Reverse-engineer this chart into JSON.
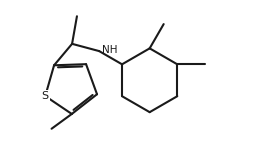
{
  "line_color": "#1a1a1a",
  "bg_color": "#ffffff",
  "line_width": 1.5,
  "font_size": 7.5,
  "label_S": "S",
  "label_NH": "NH",
  "figsize": [
    2.7,
    1.45
  ],
  "dpi": 100
}
